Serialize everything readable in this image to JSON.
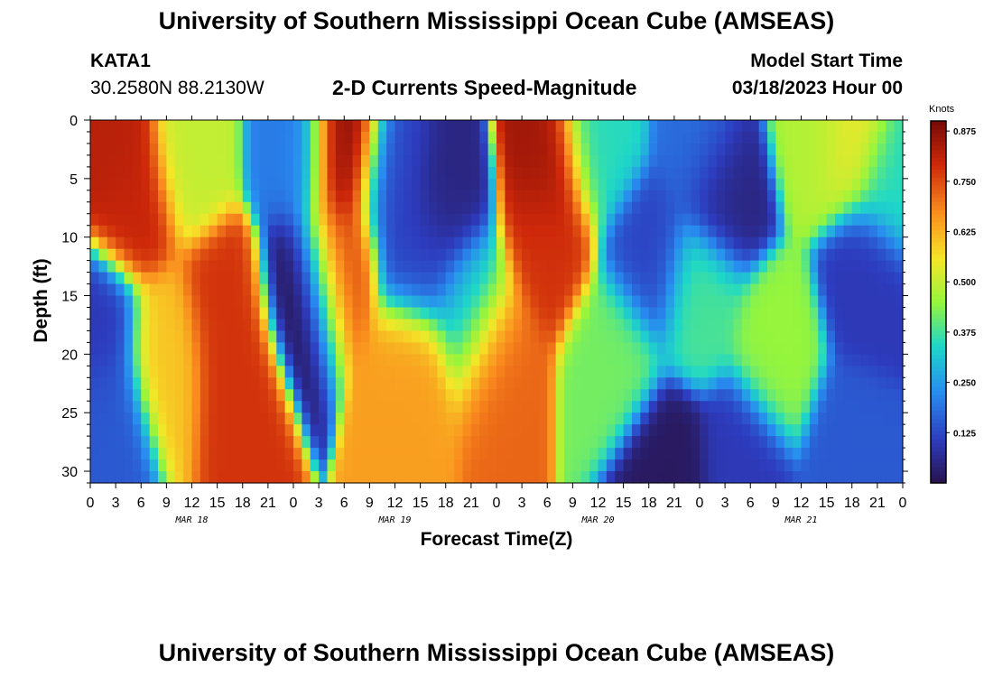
{
  "header": {
    "title": "University of Southern Mississippi Ocean Cube (AMSEAS)",
    "station_name": "KATA1",
    "station_coords": "30.2580N  88.2130W",
    "chart_title": "2-D Currents Speed-Magnitude",
    "model_label": "Model Start Time",
    "model_time": "03/18/2023 Hour 00"
  },
  "footer": {
    "title": "University of Southern Mississippi Ocean Cube (AMSEAS)"
  },
  "chart_data": {
    "type": "heatmap",
    "title": "2-D Currents Speed-Magnitude",
    "xlabel": "Forecast Time(Z)",
    "ylabel": "Depth (ft)",
    "x_ticks": [
      "0",
      "3",
      "6",
      "9",
      "12",
      "15",
      "18",
      "21",
      "0",
      "3",
      "6",
      "9",
      "12",
      "15",
      "18",
      "21",
      "0",
      "3",
      "6",
      "9",
      "12",
      "15",
      "18",
      "21",
      "0",
      "3",
      "6",
      "9",
      "12",
      "15",
      "18",
      "21",
      "0"
    ],
    "x_range_hours": [
      0,
      96
    ],
    "date_labels": [
      {
        "label": "MAR 18",
        "hour": 12
      },
      {
        "label": "MAR 19",
        "hour": 36
      },
      {
        "label": "MAR 20",
        "hour": 60
      },
      {
        "label": "MAR 21",
        "hour": 84
      }
    ],
    "y_ticks": [
      0,
      5,
      10,
      15,
      20,
      25,
      30
    ],
    "ylim": [
      0,
      31
    ],
    "y_inverted": true,
    "colorbar": {
      "unit": "Knots",
      "range": [
        0.0,
        0.9
      ],
      "tick_values": [
        0.125,
        0.25,
        0.375,
        0.5,
        0.625,
        0.75,
        0.875
      ],
      "tick_labels": [
        "0.125",
        "0.250",
        "0.375",
        "0.500",
        "0.625",
        "0.750",
        "0.875"
      ]
    },
    "blobs": [
      {
        "hour": 3,
        "depth": 3,
        "speed": 0.82
      },
      {
        "hour": 5,
        "depth": 7,
        "speed": 0.8
      },
      {
        "hour": 12,
        "depth": 3,
        "speed": 0.5
      },
      {
        "hour": 16,
        "depth": 16,
        "speed": 0.78
      },
      {
        "hour": 17,
        "depth": 21,
        "speed": 0.78
      },
      {
        "hour": 9,
        "depth": 20,
        "speed": 0.6
      },
      {
        "hour": 2,
        "depth": 25,
        "speed": 0.15
      },
      {
        "hour": 1,
        "depth": 18,
        "speed": 0.1
      },
      {
        "hour": 25,
        "depth": 14,
        "speed": 0.0
      },
      {
        "hour": 24,
        "depth": 3,
        "speed": 0.2
      },
      {
        "hour": 30,
        "depth": 3,
        "speed": 0.88
      },
      {
        "hour": 29,
        "depth": 12,
        "speed": 0.75
      },
      {
        "hour": 36,
        "depth": 5,
        "speed": 0.12
      },
      {
        "hour": 42,
        "depth": 7,
        "speed": 0.05
      },
      {
        "hour": 39,
        "depth": 12,
        "speed": 0.12
      },
      {
        "hour": 38,
        "depth": 21,
        "speed": 0.65
      },
      {
        "hour": 48,
        "depth": 20,
        "speed": 0.72
      },
      {
        "hour": 45,
        "depth": 16,
        "speed": 0.3
      },
      {
        "hour": 54,
        "depth": 4,
        "speed": 0.85
      },
      {
        "hour": 54,
        "depth": 10,
        "speed": 0.78
      },
      {
        "hour": 60,
        "depth": 2,
        "speed": 0.35
      },
      {
        "hour": 62,
        "depth": 20,
        "speed": 0.42
      },
      {
        "hour": 68,
        "depth": 30,
        "speed": 0.02
      },
      {
        "hour": 66,
        "depth": 12,
        "speed": 0.12
      },
      {
        "hour": 72,
        "depth": 2,
        "speed": 0.18
      },
      {
        "hour": 75,
        "depth": 6,
        "speed": 0.05
      },
      {
        "hour": 72,
        "depth": 15,
        "speed": 0.38
      },
      {
        "hour": 81,
        "depth": 20,
        "speed": 0.45
      },
      {
        "hour": 77,
        "depth": 29,
        "speed": 0.1
      },
      {
        "hour": 86,
        "depth": 1,
        "speed": 0.48
      },
      {
        "hour": 90,
        "depth": 1,
        "speed": 0.55
      },
      {
        "hour": 92,
        "depth": 14,
        "speed": 0.1
      },
      {
        "hour": 95,
        "depth": 5,
        "speed": 0.35
      },
      {
        "hour": 90,
        "depth": 28,
        "speed": 0.15
      }
    ]
  }
}
